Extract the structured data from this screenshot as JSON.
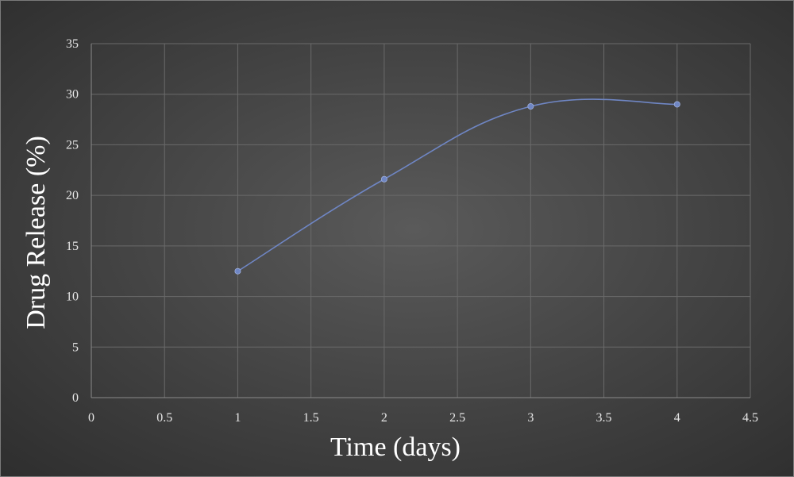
{
  "chart_data": {
    "type": "line",
    "title": "",
    "xlabel": "Time (days)",
    "ylabel": "Drug Release (%)",
    "xlim": [
      0,
      4.5
    ],
    "ylim": [
      0,
      35
    ],
    "x_ticks": [
      "0",
      "0.5",
      "1",
      "1.5",
      "2",
      "2.5",
      "3",
      "3.5",
      "4",
      "4.5"
    ],
    "y_ticks": [
      "0",
      "5",
      "10",
      "15",
      "20",
      "25",
      "30",
      "35"
    ],
    "x_tick_values": [
      0,
      0.5,
      1,
      1.5,
      2,
      2.5,
      3,
      3.5,
      4,
      4.5
    ],
    "y_tick_values": [
      0,
      5,
      10,
      15,
      20,
      25,
      30,
      35
    ],
    "grid": true,
    "smooth": true,
    "series": [
      {
        "x": [
          1,
          2,
          3,
          4
        ],
        "values": [
          12.5,
          21.6,
          28.8,
          29.0
        ],
        "color": "#6f86c4"
      }
    ]
  }
}
